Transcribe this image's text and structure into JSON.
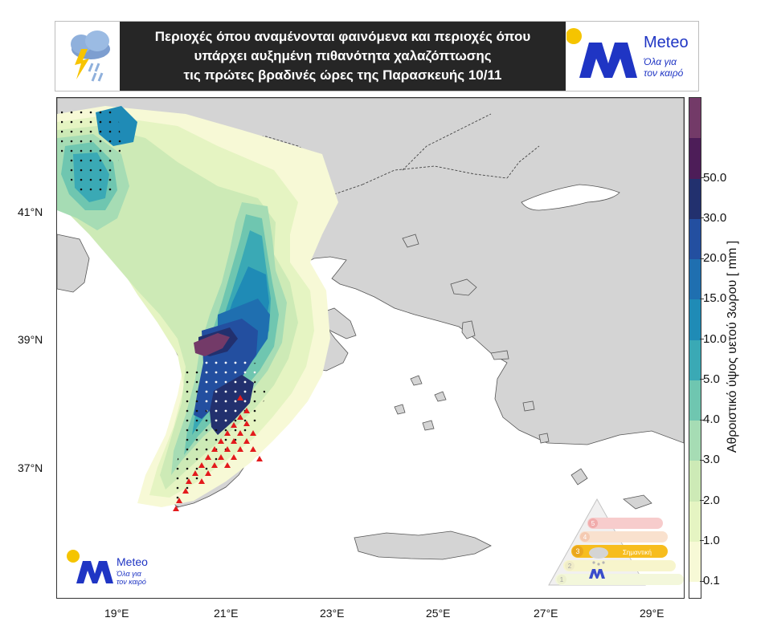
{
  "header": {
    "title_lines": [
      "Περιοχές όπου αναμένονται φαινόμενα και περιοχές όπου",
      "υπάρχει αυξημένη πιθανότητα χαλαζόπτωσης",
      "τις πρώτες βραδινές ώρες της Παρασκευής 10/11"
    ],
    "weather_icon": "storm-cloud-lightning-icon"
  },
  "brand": {
    "name": "Meteo",
    "tagline_line1": "Όλα για",
    "tagline_line2": "τον καιρό",
    "color": "#1f35c4",
    "sun_color": "#f5c400"
  },
  "map": {
    "lat_labels": [
      "41°N",
      "39°N",
      "37°N"
    ],
    "lon_labels": [
      "19°E",
      "21°E",
      "23°E",
      "25°E",
      "27°E",
      "29°E"
    ],
    "land_color": "#d4d4d4",
    "sea_color": "#ffffff",
    "markers": {
      "dot_black": "phenomena-dot",
      "dot_white": "phenomena-dot-white",
      "triangle_red": "hail-probability-triangle",
      "hail_color": "#e31a1c"
    }
  },
  "colorbar": {
    "label": "Αθροιστικό ύψος υετού 3ωρου [ mm ]",
    "ticks": [
      "0.1",
      "1.0",
      "2.0",
      "3.0",
      "4.0",
      "5.0",
      "10.0",
      "15.0",
      "20.0",
      "30.0",
      "50.0"
    ],
    "colors": [
      "#ffffff",
      "#f7f9d6",
      "#e5f4c2",
      "#cdeab6",
      "#a6dcb4",
      "#6fc6b0",
      "#3aa9b5",
      "#1f8bb6",
      "#1f6fb0",
      "#234fa0",
      "#22306e",
      "#4d1d58",
      "#733a68"
    ]
  },
  "legend": {
    "levels": [
      "1",
      "2",
      "3",
      "4",
      "5"
    ],
    "active_level": "3",
    "level_labels": [
      "",
      "",
      "Σημαντική",
      "",
      ""
    ],
    "caption": ""
  }
}
